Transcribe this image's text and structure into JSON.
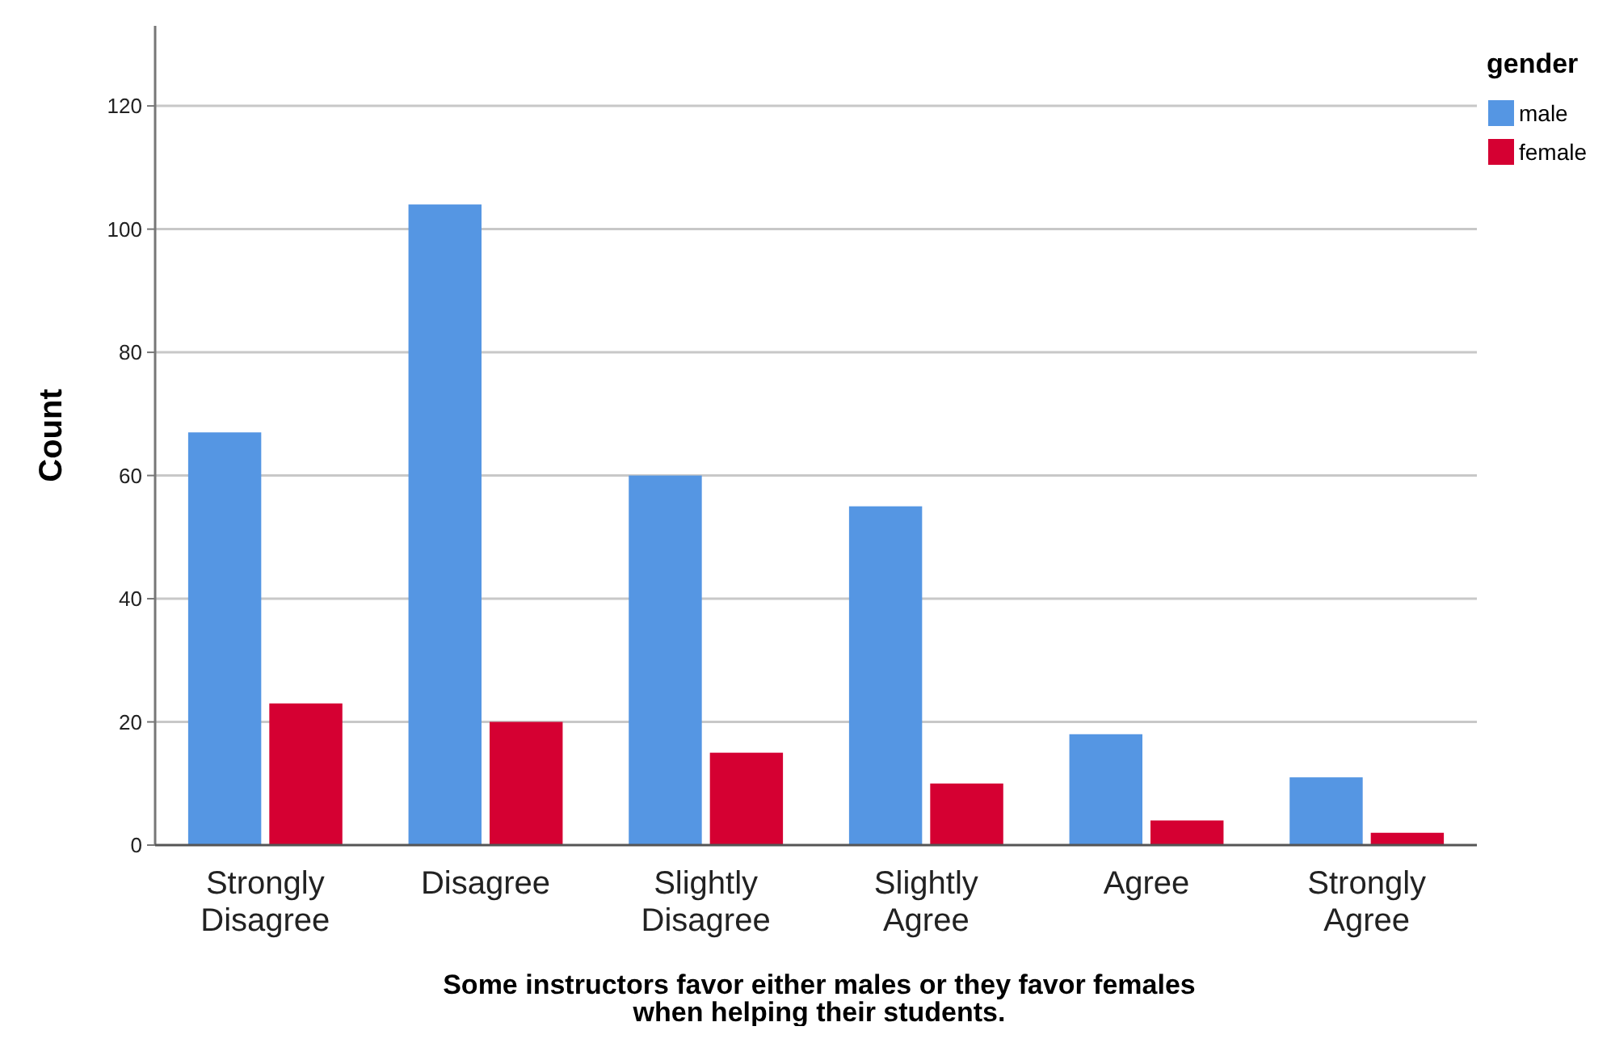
{
  "chart_data": {
    "type": "bar",
    "xlabel": "Some instructors favor either males or they favor females when helping their students.",
    "ylabel": "Count",
    "legend_title": "gender",
    "categories": [
      "Strongly Disagree",
      "Disagree",
      "Slightly Disagree",
      "Slightly Agree",
      "Agree",
      "Strongly Agree"
    ],
    "series": [
      {
        "name": "male",
        "color": "#5596e3",
        "values": [
          67,
          104,
          60,
          55,
          18,
          11
        ]
      },
      {
        "name": "female",
        "color": "#d50032",
        "values": [
          23,
          20,
          15,
          10,
          4,
          2
        ]
      }
    ],
    "ylim": [
      0,
      133
    ],
    "yticks": [
      0,
      20,
      40,
      60,
      80,
      100,
      120
    ],
    "grid": "y",
    "legend": "top right"
  }
}
